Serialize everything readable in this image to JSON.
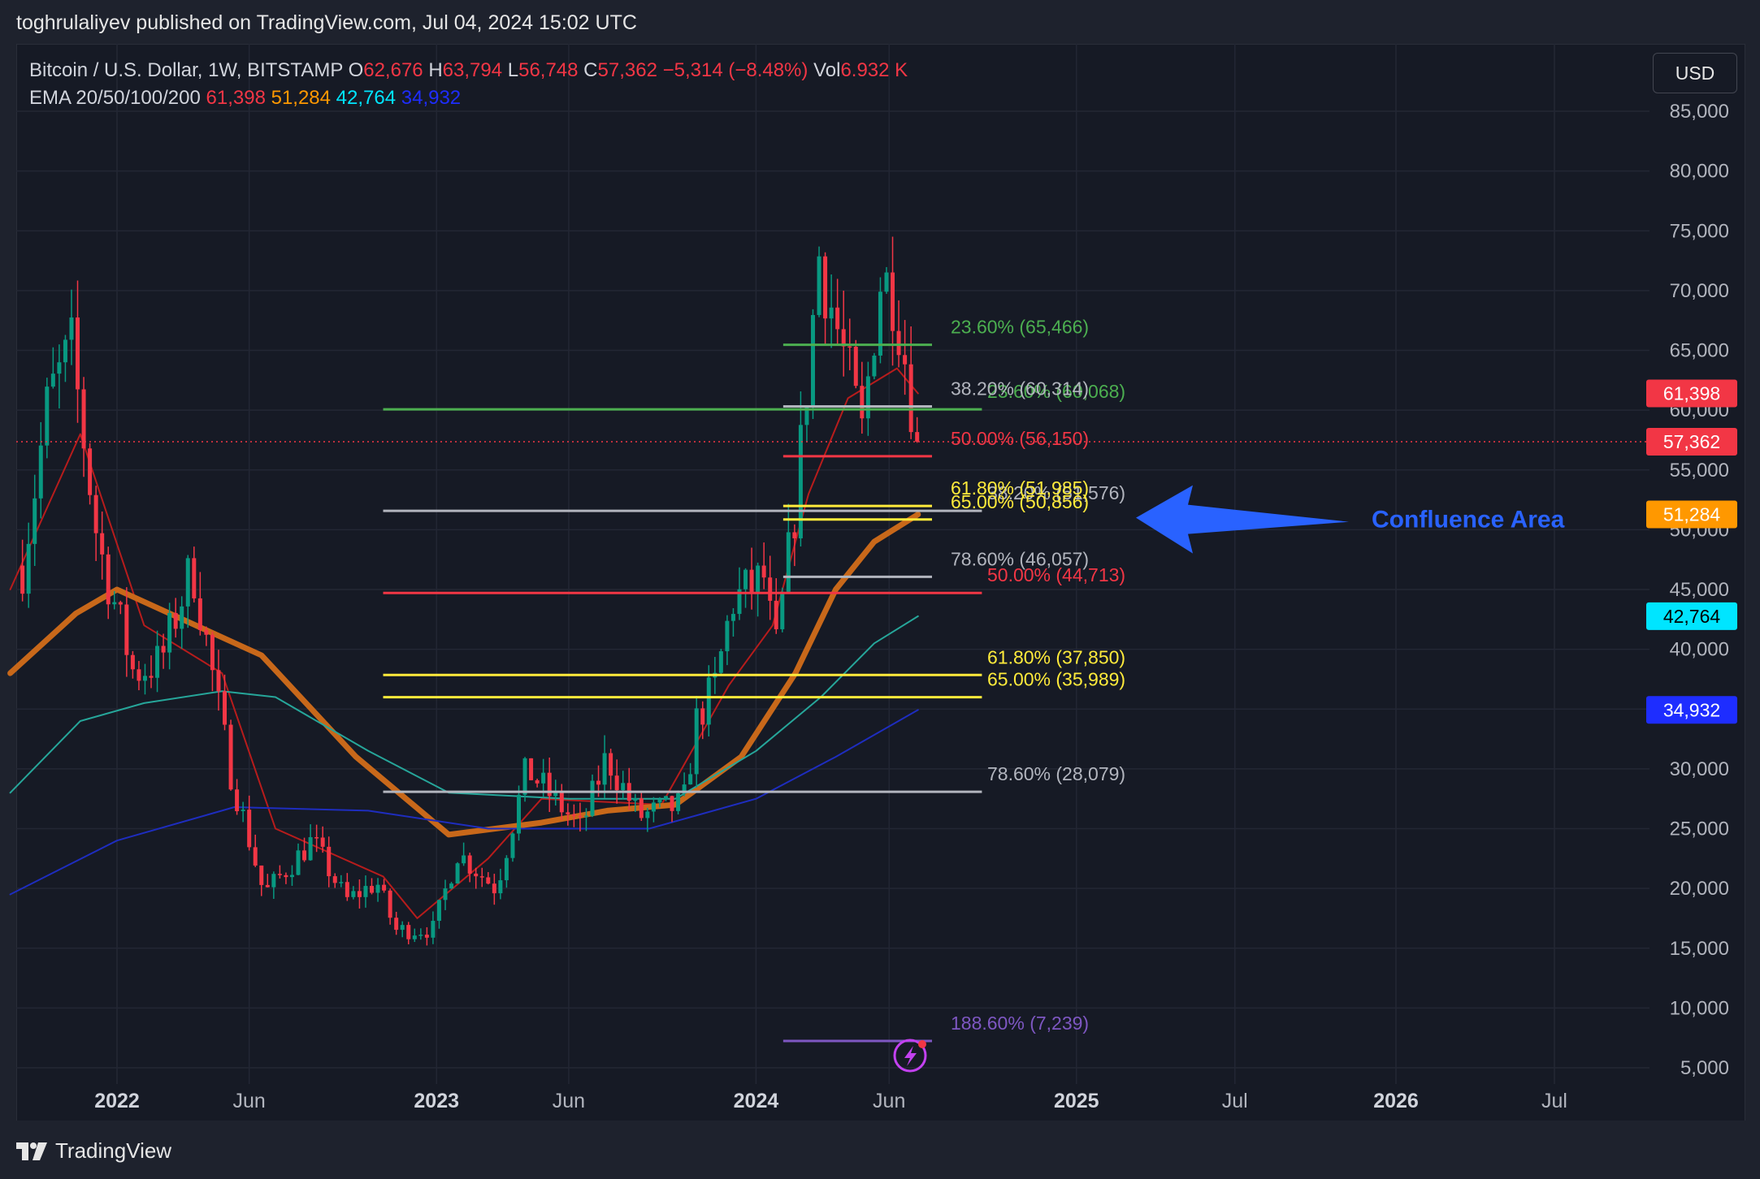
{
  "header": {
    "published_text": "toghrulaliyev published on TradingView.com, Jul 04, 2024 15:02 UTC"
  },
  "legend": {
    "symbol": "Bitcoin / U.S. Dollar, 1W, BITSTAMP",
    "o_label": "O",
    "o_value": "62,676",
    "h_label": "H",
    "h_value": "63,794",
    "l_label": "L",
    "l_value": "56,748",
    "c_label": "C",
    "c_value": "57,362",
    "change": "−5,314 (−8.48%)",
    "vol_label": "Vol",
    "vol_value": "6.932 K",
    "ema_label": "EMA 20/50/100/200",
    "ema20": "61,398",
    "ema50": "51,284",
    "ema100": "42,764",
    "ema200": "34,932"
  },
  "currency_button": "USD",
  "colors": {
    "up": "#089981",
    "down": "#f23645",
    "ema20": "#b71c1c",
    "ema50": "#c8681a",
    "ema100": "#26a69a",
    "ema200": "#1e2dbf",
    "arrow": "#2962ff"
  },
  "chart_data": {
    "type": "candlestick",
    "symbol": "Bitcoin / U.S. Dollar",
    "interval": "1W",
    "exchange": "BITSTAMP",
    "y_axis": {
      "ticks": [
        "85,000",
        "80,000",
        "75,000",
        "70,000",
        "65,000",
        "60,000",
        "55,000",
        "50,000",
        "45,000",
        "40,000",
        "35,000",
        "30,000",
        "25,000",
        "20,000",
        "15,000",
        "10,000",
        "5,000"
      ],
      "tick_values": [
        85000,
        80000,
        75000,
        70000,
        65000,
        60000,
        55000,
        50000,
        45000,
        40000,
        35000,
        30000,
        25000,
        20000,
        15000,
        10000,
        5000
      ],
      "range": [
        3000,
        90000
      ]
    },
    "x_axis": {
      "labels": [
        {
          "text": "2022",
          "date": "2022-01-01",
          "bold": true
        },
        {
          "text": "Jun",
          "date": "2022-06-01",
          "bold": false
        },
        {
          "text": "2023",
          "date": "2023-01-01",
          "bold": true
        },
        {
          "text": "Jun",
          "date": "2023-06-01",
          "bold": false
        },
        {
          "text": "2024",
          "date": "2024-01-01",
          "bold": true
        },
        {
          "text": "Jun",
          "date": "2024-06-01",
          "bold": false
        },
        {
          "text": "2025",
          "date": "2025-01-01",
          "bold": true
        },
        {
          "text": "Jul",
          "date": "2025-07-01",
          "bold": false
        },
        {
          "text": "2026",
          "date": "2026-01-01",
          "bold": true
        },
        {
          "text": "Jul",
          "date": "2026-07-01",
          "bold": false
        }
      ]
    },
    "price_points": [
      {
        "date": "2021-09-15",
        "value": 47000
      },
      {
        "date": "2021-10-15",
        "value": 61000
      },
      {
        "date": "2021-11-10",
        "value": 65000
      },
      {
        "date": "2021-12-10",
        "value": 49000
      },
      {
        "date": "2022-01-20",
        "value": 38000
      },
      {
        "date": "2022-02-20",
        "value": 39000
      },
      {
        "date": "2022-03-28",
        "value": 47000
      },
      {
        "date": "2022-05-10",
        "value": 30000
      },
      {
        "date": "2022-06-18",
        "value": 19500
      },
      {
        "date": "2022-08-12",
        "value": 24000
      },
      {
        "date": "2022-09-20",
        "value": 19000
      },
      {
        "date": "2022-10-25",
        "value": 20500
      },
      {
        "date": "2022-11-15",
        "value": 16500
      },
      {
        "date": "2022-12-28",
        "value": 16600
      },
      {
        "date": "2023-01-25",
        "value": 23000
      },
      {
        "date": "2023-03-10",
        "value": 20000
      },
      {
        "date": "2023-04-14",
        "value": 30000
      },
      {
        "date": "2023-06-15",
        "value": 25000
      },
      {
        "date": "2023-07-14",
        "value": 31000
      },
      {
        "date": "2023-08-20",
        "value": 26000
      },
      {
        "date": "2023-10-10",
        "value": 27000
      },
      {
        "date": "2023-10-25",
        "value": 34000
      },
      {
        "date": "2023-11-15",
        "value": 37000
      },
      {
        "date": "2023-12-05",
        "value": 44000
      },
      {
        "date": "2024-01-10",
        "value": 46000
      },
      {
        "date": "2024-01-23",
        "value": 39500
      },
      {
        "date": "2024-02-15",
        "value": 52000
      },
      {
        "date": "2024-03-13",
        "value": 73000
      },
      {
        "date": "2024-04-12",
        "value": 64000
      },
      {
        "date": "2024-05-01",
        "value": 58000
      },
      {
        "date": "2024-05-21",
        "value": 71000
      },
      {
        "date": "2024-06-07",
        "value": 70000
      },
      {
        "date": "2024-06-20",
        "value": 64000
      },
      {
        "date": "2024-07-04",
        "value": 57362
      }
    ],
    "series": [
      {
        "name": "EMA 20",
        "last": 61398,
        "points": [
          {
            "date": "2021-09-01",
            "value": 45000
          },
          {
            "date": "2021-11-20",
            "value": 58000
          },
          {
            "date": "2022-02-01",
            "value": 42000
          },
          {
            "date": "2022-05-01",
            "value": 38000
          },
          {
            "date": "2022-07-01",
            "value": 25000
          },
          {
            "date": "2022-11-01",
            "value": 21000
          },
          {
            "date": "2022-12-10",
            "value": 17500
          },
          {
            "date": "2023-03-01",
            "value": 22500
          },
          {
            "date": "2023-05-01",
            "value": 27500
          },
          {
            "date": "2023-09-15",
            "value": 27000
          },
          {
            "date": "2023-12-01",
            "value": 37000
          },
          {
            "date": "2024-01-20",
            "value": 42000
          },
          {
            "date": "2024-03-01",
            "value": 53000
          },
          {
            "date": "2024-04-15",
            "value": 61000
          },
          {
            "date": "2024-06-10",
            "value": 63500
          },
          {
            "date": "2024-07-04",
            "value": 61398
          }
        ]
      },
      {
        "name": "EMA 50",
        "last": 51284,
        "points": [
          {
            "date": "2021-09-01",
            "value": 38000
          },
          {
            "date": "2021-11-15",
            "value": 43000
          },
          {
            "date": "2022-01-01",
            "value": 45000
          },
          {
            "date": "2022-04-01",
            "value": 42000
          },
          {
            "date": "2022-06-15",
            "value": 39500
          },
          {
            "date": "2022-10-01",
            "value": 31000
          },
          {
            "date": "2023-01-15",
            "value": 24500
          },
          {
            "date": "2023-05-01",
            "value": 25500
          },
          {
            "date": "2023-07-15",
            "value": 26500
          },
          {
            "date": "2023-10-01",
            "value": 27000
          },
          {
            "date": "2023-12-15",
            "value": 31000
          },
          {
            "date": "2024-02-15",
            "value": 38000
          },
          {
            "date": "2024-04-01",
            "value": 45000
          },
          {
            "date": "2024-05-15",
            "value": 49000
          },
          {
            "date": "2024-07-04",
            "value": 51284
          }
        ]
      },
      {
        "name": "EMA 100",
        "last": 42764,
        "points": [
          {
            "date": "2021-09-01",
            "value": 28000
          },
          {
            "date": "2021-11-20",
            "value": 34000
          },
          {
            "date": "2022-02-01",
            "value": 35500
          },
          {
            "date": "2022-05-01",
            "value": 36500
          },
          {
            "date": "2022-07-01",
            "value": 36000
          },
          {
            "date": "2022-10-15",
            "value": 31500
          },
          {
            "date": "2023-01-15",
            "value": 28000
          },
          {
            "date": "2023-06-01",
            "value": 27500
          },
          {
            "date": "2023-10-01",
            "value": 27500
          },
          {
            "date": "2024-01-01",
            "value": 31500
          },
          {
            "date": "2024-03-15",
            "value": 36000
          },
          {
            "date": "2024-05-15",
            "value": 40500
          },
          {
            "date": "2024-07-04",
            "value": 42764
          }
        ]
      },
      {
        "name": "EMA 200",
        "last": 34932,
        "points": [
          {
            "date": "2021-09-01",
            "value": 19500
          },
          {
            "date": "2022-01-01",
            "value": 24000
          },
          {
            "date": "2022-05-15",
            "value": 26800
          },
          {
            "date": "2022-10-15",
            "value": 26500
          },
          {
            "date": "2023-03-01",
            "value": 25000
          },
          {
            "date": "2023-09-01",
            "value": 25000
          },
          {
            "date": "2024-01-01",
            "value": 27500
          },
          {
            "date": "2024-04-01",
            "value": 31000
          },
          {
            "date": "2024-07-04",
            "value": 34932
          }
        ]
      }
    ],
    "price_axis_labels": [
      {
        "value": 61398,
        "text": "61,398",
        "bg": "#f23645",
        "fg": "#ffffff"
      },
      {
        "value": 57362,
        "text": "57,362",
        "bg": "#f23645",
        "fg": "#ffffff"
      },
      {
        "value": 51284,
        "text": "51,284",
        "bg": "#ff9800",
        "fg": "#ffffff"
      },
      {
        "value": 42764,
        "text": "42,764",
        "bg": "#00e5ff",
        "fg": "#000000"
      },
      {
        "value": 34932,
        "text": "34,932",
        "bg": "#1e2dff",
        "fg": "#ffffff"
      }
    ],
    "fib_levels": [
      {
        "group": "macro",
        "value": 60068,
        "text": "23.60% (60,068)",
        "color": "#4caf50",
        "from": "2022-11-01",
        "to": "2024-09-15"
      },
      {
        "group": "macro",
        "value": 51576,
        "text": "38.20% (51,576)",
        "color": "#b2b5be",
        "from": "2022-11-01",
        "to": "2024-09-15"
      },
      {
        "group": "macro",
        "value": 44713,
        "text": "50.00% (44,713)",
        "color": "#f23645",
        "from": "2022-11-01",
        "to": "2024-09-15"
      },
      {
        "group": "macro",
        "value": 37850,
        "text": "61.80% (37,850)",
        "color": "#ffeb3b",
        "from": "2022-11-01",
        "to": "2024-09-15"
      },
      {
        "group": "macro",
        "value": 35989,
        "text": "65.00% (35,989)",
        "color": "#ffeb3b",
        "from": "2022-11-01",
        "to": "2024-09-15"
      },
      {
        "group": "macro",
        "value": 28079,
        "text": "78.60% (28,079)",
        "color": "#b2b5be",
        "from": "2022-11-01",
        "to": "2024-09-15"
      },
      {
        "group": "micro",
        "value": 65466,
        "text": "23.60% (65,466)",
        "color": "#4caf50",
        "from": "2024-02-01",
        "to": "2024-07-20"
      },
      {
        "group": "micro",
        "value": 60314,
        "text": "38.20% (60,314)",
        "color": "#b2b5be",
        "from": "2024-02-01",
        "to": "2024-07-20"
      },
      {
        "group": "micro",
        "value": 56150,
        "text": "50.00% (56,150)",
        "color": "#f23645",
        "from": "2024-02-01",
        "to": "2024-07-20"
      },
      {
        "group": "micro",
        "value": 51985,
        "text": "61.80% (51,985)",
        "color": "#ffeb3b",
        "from": "2024-02-01",
        "to": "2024-07-20"
      },
      {
        "group": "micro",
        "value": 50856,
        "text": "65.00% (50,856)",
        "color": "#ffeb3b",
        "from": "2024-02-01",
        "to": "2024-07-20"
      },
      {
        "group": "micro",
        "value": 46057,
        "text": "78.60% (46,057)",
        "color": "#b2b5be",
        "from": "2024-02-01",
        "to": "2024-07-20"
      },
      {
        "group": "micro",
        "value": 7239,
        "text": "188.60% (7,239)",
        "color": "#7e57c2",
        "from": "2024-02-01",
        "to": "2024-07-20"
      }
    ],
    "annotation": {
      "text": "Confluence Area",
      "color": "#2962ff",
      "value": 51000
    }
  },
  "footer": {
    "brand": "TradingView"
  }
}
